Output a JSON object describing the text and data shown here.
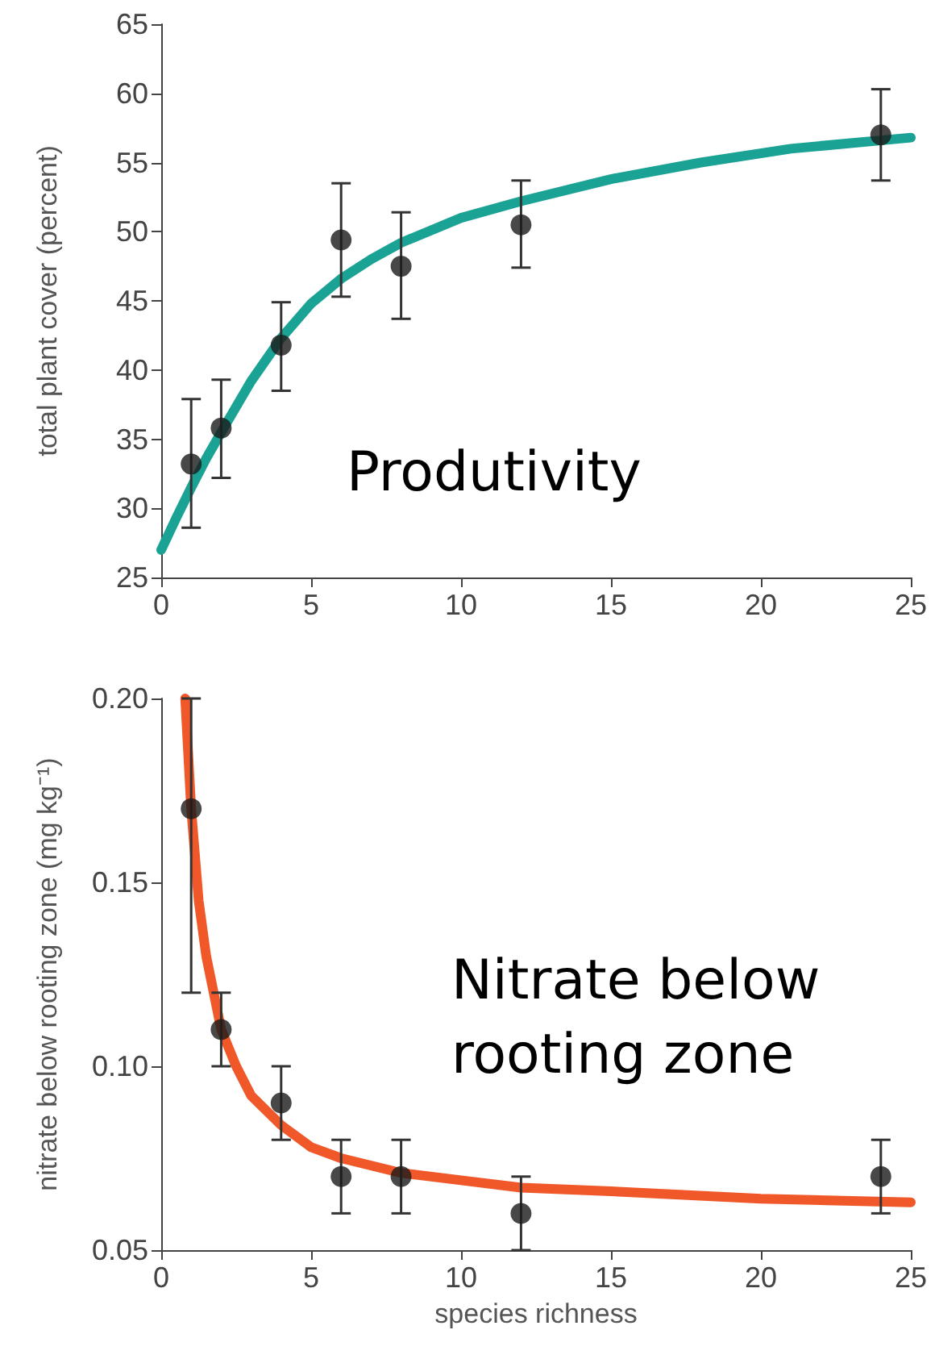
{
  "chart_data": [
    {
      "type": "scatter",
      "ylabel": "total plant cover (percent)",
      "xlim": [
        0,
        25
      ],
      "xticks": [
        0,
        5,
        10,
        15,
        20,
        25
      ],
      "ylim": [
        25,
        65
      ],
      "yticks": [
        25,
        30,
        35,
        40,
        45,
        50,
        55,
        60,
        65
      ],
      "annotations": [
        "Produtivity"
      ],
      "series": [
        {
          "type": "line",
          "color": "#1aa394",
          "marker": "none",
          "x": [
            0,
            0.5,
            1,
            1.5,
            2,
            3,
            4,
            5,
            6,
            7,
            8,
            10,
            12,
            15,
            18,
            21,
            25
          ],
          "values": [
            27,
            29.3,
            31.5,
            33.6,
            35.5,
            39.2,
            42.3,
            44.8,
            46.6,
            48,
            49.2,
            51,
            52.2,
            53.8,
            55,
            56,
            56.8
          ]
        },
        {
          "color": "#1a1a1a",
          "marker": "circle",
          "x": [
            1,
            2,
            4,
            6,
            8,
            12,
            24
          ],
          "values": [
            33.2,
            35.8,
            41.8,
            49.4,
            47.5,
            50.5,
            57
          ],
          "errors": [
            [
              28.6,
              37.9
            ],
            [
              32.2,
              39.3
            ],
            [
              38.5,
              44.9
            ],
            [
              45.3,
              53.5
            ],
            [
              43.7,
              51.4
            ],
            [
              47.4,
              53.7
            ],
            [
              53.7,
              60.3
            ]
          ]
        }
      ]
    },
    {
      "type": "scatter",
      "xlabel": "species richness",
      "ylabel": "nitrate below rooting zone (mg kg⁻¹)",
      "xlim": [
        0,
        25
      ],
      "xticks": [
        0,
        5,
        10,
        15,
        20,
        25
      ],
      "ylim": [
        0.05,
        0.2
      ],
      "yticks": [
        {
          "value": 0.05,
          "label": "0.05"
        },
        {
          "value": 0.1,
          "label": "0.10"
        },
        {
          "value": 0.15,
          "label": "0.15"
        },
        {
          "value": 0.2,
          "label": "0.20"
        }
      ],
      "annotations": [
        "Nitrate below rooting zone"
      ],
      "series": [
        {
          "type": "line",
          "color": "#f0582a",
          "marker": "none",
          "x": [
            0.8,
            1,
            1.25,
            1.5,
            2,
            2.5,
            3,
            4,
            5,
            6,
            8,
            10,
            12,
            15,
            20,
            25
          ],
          "values": [
            0.2,
            0.17,
            0.145,
            0.13,
            0.11,
            0.1,
            0.092,
            0.084,
            0.078,
            0.075,
            0.071,
            0.069,
            0.067,
            0.066,
            0.064,
            0.063
          ]
        },
        {
          "color": "#1a1a1a",
          "marker": "circle",
          "x": [
            1,
            2,
            4,
            6,
            8,
            12,
            24
          ],
          "values": [
            0.17,
            0.11,
            0.09,
            0.07,
            0.07,
            0.06,
            0.07
          ],
          "errors": [
            [
              0.12,
              0.2
            ],
            [
              0.1,
              0.12
            ],
            [
              0.08,
              0.1
            ],
            [
              0.06,
              0.08
            ],
            [
              0.06,
              0.08
            ],
            [
              0.05,
              0.07
            ],
            [
              0.06,
              0.08
            ]
          ]
        }
      ]
    }
  ]
}
